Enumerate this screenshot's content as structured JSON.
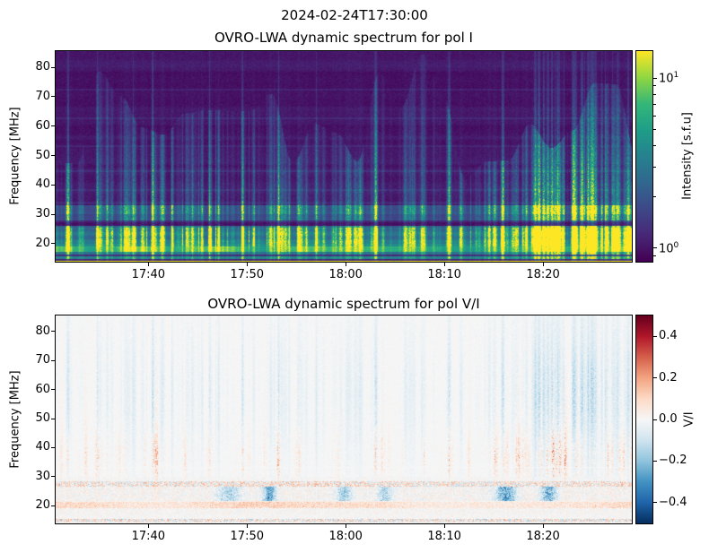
{
  "figure": {
    "suptitle": "2024-02-24T17:30:00",
    "background": "#ffffff",
    "text_color": "#000000"
  },
  "top_chart": {
    "title": "OVRO-LWA dynamic spectrum for pol I",
    "ylabel": "Frequency [MHz]",
    "x_tick_labels": [
      "17:40",
      "17:50",
      "18:00",
      "18:10",
      "18:20"
    ],
    "y_tick_labels": [
      "80",
      "70",
      "60",
      "50",
      "40",
      "30",
      "20"
    ],
    "colorbar": {
      "label": "Intensity [s.f.u]",
      "scale": "log",
      "vmin": 0.83,
      "vmax": 14.4,
      "major_ticks": [
        {
          "value": 10,
          "base": "10",
          "exp": "1"
        },
        {
          "value": 1,
          "base": "10",
          "exp": "0"
        }
      ],
      "minor_ticks": [
        0.9,
        2,
        3,
        4,
        5,
        6,
        7,
        8,
        9
      ]
    }
  },
  "bottom_chart": {
    "title": "OVRO-LWA dynamic spectrum for pol V/I",
    "ylabel": "Frequency [MHz]",
    "x_tick_labels": [
      "17:40",
      "17:50",
      "18:00",
      "18:10",
      "18:20"
    ],
    "y_tick_labels": [
      "80",
      "70",
      "60",
      "50",
      "40",
      "30",
      "20"
    ],
    "colorbar": {
      "label": "V/I",
      "scale": "linear",
      "vmin": -0.5,
      "vmax": 0.5,
      "major_ticks": [
        {
          "value": 0.4,
          "label": "0.4"
        },
        {
          "value": 0.2,
          "label": "0.2"
        },
        {
          "value": 0.0,
          "label": "0.0"
        },
        {
          "value": -0.2,
          "label": "−0.2"
        },
        {
          "value": -0.4,
          "label": "−0.4"
        }
      ]
    }
  },
  "chart_data": [
    {
      "type": "heatmap",
      "title": "OVRO-LWA dynamic spectrum for pol I",
      "xlabel": "",
      "x_axis": {
        "start_minutes": 1050.6,
        "end_minutes": 1109.0,
        "tick_minutes": [
          1060,
          1070,
          1080,
          1090,
          1100
        ],
        "tick_labels": [
          "17:40",
          "17:50",
          "18:00",
          "18:10",
          "18:20"
        ]
      },
      "y_axis": {
        "label": "Frequency [MHz]",
        "min": 13.9,
        "max": 85.5,
        "tick_values": [
          80,
          70,
          60,
          50,
          40,
          30,
          20
        ]
      },
      "color_axis": {
        "label": "Intensity [s.f.u]",
        "scale": "log",
        "min": 0.83,
        "max": 14.4,
        "colormap": "viridis"
      },
      "content": "Solar radio dynamic spectrum: dark purple quiet-Sun background with many narrow vertical burst streaks (type III bursts) brightening toward low frequencies; faint horizontal RFI lines near 72, 63, 53, 45, 38 and 34 MHz; bright banded emission below 33 MHz with a dark lane near 26-28 MHz; saturated yellow-green band near 17-19 MHz and a bright line at the bottom edge; burst activity densest after 18:15",
      "burst_times_frac": [
        0.02,
        0.072,
        0.168,
        0.266,
        0.324,
        0.386,
        0.554,
        0.682,
        0.776,
        0.838,
        0.853,
        0.912,
        0.931,
        0.966
      ]
    },
    {
      "type": "heatmap",
      "title": "OVRO-LWA dynamic spectrum for pol V/I",
      "xlabel": "",
      "x_axis": {
        "start_minutes": 1050.6,
        "end_minutes": 1109.0,
        "tick_minutes": [
          1060,
          1070,
          1080,
          1090,
          1100
        ],
        "tick_labels": [
          "17:40",
          "17:50",
          "18:00",
          "18:10",
          "18:20"
        ]
      },
      "y_axis": {
        "label": "Frequency [MHz]",
        "min": 13.9,
        "max": 85.5,
        "tick_values": [
          80,
          70,
          60,
          50,
          40,
          30,
          20
        ]
      },
      "color_axis": {
        "label": "V/I",
        "scale": "linear",
        "min": -0.5,
        "max": 0.5,
        "colormap": "RdBu_r"
      },
      "content": "Circular polarization fraction: near-white background; faint blue vertical streaks at burst times between 30 and 85 MHz; red speckled streaks near 28-50 MHz strongest after 18:10; dense gray-red speckle band at 26.5-28.5 MHz; blue patches 22-26 MHz; reddish wisps near 19-21 MHz; dense noise rows near 14-15 MHz",
      "blue_patch_fracs": [
        0.3,
        0.37,
        0.5,
        0.57,
        0.78,
        0.855
      ]
    }
  ],
  "palette": {
    "viridis": [
      "#440154",
      "#482878",
      "#3e4989",
      "#31688e",
      "#26828e",
      "#1f9e89",
      "#35b779",
      "#90d743",
      "#fde725"
    ],
    "rdbu_r": [
      "#053061",
      "#2166ac",
      "#4393c3",
      "#92c5de",
      "#d1e5f0",
      "#f7f7f7",
      "#fddbc7",
      "#f4a582",
      "#d6604d",
      "#b2182b",
      "#67001f"
    ]
  }
}
